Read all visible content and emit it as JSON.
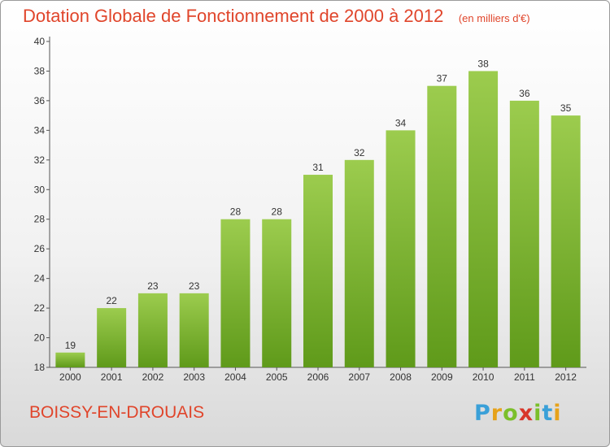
{
  "header": {
    "title": "Dotation Globale de Fonctionnement de 2000 à 2012",
    "subtitle": "(en milliers d'€)"
  },
  "footer": {
    "city": "BOISSY-EN-DROUAIS",
    "logo": [
      {
        "ch": "P",
        "color": "#3aa0d8"
      },
      {
        "ch": "r",
        "color": "#e6a21a"
      },
      {
        "ch": "o",
        "color": "#7bbf2a"
      },
      {
        "ch": "x",
        "color": "#d8362a"
      },
      {
        "ch": "i",
        "color": "#7bbf2a"
      },
      {
        "ch": "t",
        "color": "#3aa0d8"
      },
      {
        "ch": "i",
        "color": "#e6a21a"
      }
    ]
  },
  "chart_data": {
    "type": "bar",
    "categories": [
      "2000",
      "2001",
      "2002",
      "2003",
      "2004",
      "2005",
      "2006",
      "2007",
      "2008",
      "2009",
      "2010",
      "2011",
      "2012"
    ],
    "values": [
      19,
      22,
      23,
      23,
      28,
      28,
      31,
      32,
      34,
      37,
      38,
      36,
      35
    ],
    "ylim": [
      18,
      40
    ],
    "yticks": [
      18,
      20,
      22,
      24,
      26,
      28,
      30,
      32,
      34,
      36,
      38,
      40
    ],
    "grid": false,
    "bar_color_top": "#9ccc4e",
    "bar_color_bottom": "#5f9a1a"
  }
}
